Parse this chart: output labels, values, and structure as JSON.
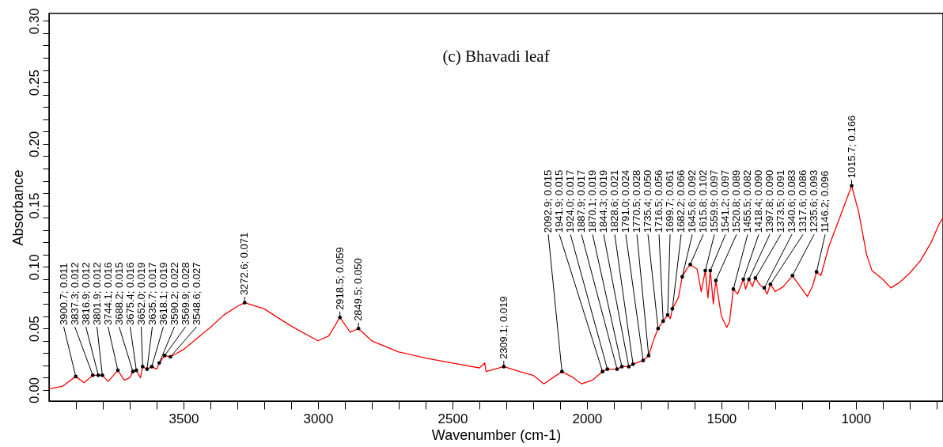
{
  "chart_data": {
    "type": "line",
    "title": "(c) Bhavadi leaf",
    "xlabel": "Wavenumber (cm-1)",
    "ylabel": "Absorbance",
    "xlim": [
      4000,
      676
    ],
    "ylim": [
      -0.009,
      0.306
    ],
    "xticks": [
      {
        "value": 3900,
        "label": null
      },
      {
        "value": 3800,
        "label": null
      },
      {
        "value": 3700,
        "label": null
      },
      {
        "value": 3600,
        "label": null
      },
      3500,
      {
        "value": 3400,
        "label": null
      },
      {
        "value": 3300,
        "label": null
      },
      {
        "value": 3200,
        "label": null
      },
      {
        "value": 3100,
        "label": null
      },
      3000,
      {
        "value": 2900,
        "label": null
      },
      {
        "value": 2800,
        "label": null
      },
      {
        "value": 2700,
        "label": null
      },
      {
        "value": 2600,
        "label": null
      },
      2500,
      {
        "value": 2400,
        "label": null
      },
      {
        "value": 2300,
        "label": null
      },
      {
        "value": 2200,
        "label": null
      },
      {
        "value": 2100,
        "label": null
      },
      2000,
      {
        "value": 1900,
        "label": null
      },
      {
        "value": 1800,
        "label": null
      },
      {
        "value": 1700,
        "label": null
      },
      {
        "value": 1600,
        "label": null
      },
      1500,
      {
        "value": 1400,
        "label": null
      },
      {
        "value": 1300,
        "label": null
      },
      {
        "value": 1200,
        "label": null
      },
      {
        "value": 1100,
        "label": null
      },
      1000,
      {
        "value": 900,
        "label": null
      },
      {
        "value": 800,
        "label": null
      },
      {
        "value": 700,
        "label": null
      }
    ],
    "yticks": [
      {
        "value": 0,
        "label": "0.00"
      },
      {
        "value": 0.01,
        "label": null
      },
      {
        "value": 0.02,
        "label": null
      },
      {
        "value": 0.03,
        "label": null
      },
      {
        "value": 0.04,
        "label": null
      },
      0.05,
      {
        "value": 0.06,
        "label": null
      },
      {
        "value": 0.07,
        "label": null
      },
      {
        "value": 0.08,
        "label": null
      },
      {
        "value": 0.09,
        "label": null
      },
      {
        "value": 0.1,
        "label": "0.10"
      },
      {
        "value": 0.11,
        "label": null
      },
      {
        "value": 0.12,
        "label": null
      },
      {
        "value": 0.13,
        "label": null
      },
      {
        "value": 0.14,
        "label": null
      },
      0.15,
      {
        "value": 0.16,
        "label": null
      },
      {
        "value": 0.17,
        "label": null
      },
      {
        "value": 0.18,
        "label": null
      },
      {
        "value": 0.19,
        "label": null
      },
      {
        "value": 0.2,
        "label": "0.20"
      },
      {
        "value": 0.21,
        "label": null
      },
      {
        "value": 0.22,
        "label": null
      },
      {
        "value": 0.23,
        "label": null
      },
      {
        "value": 0.24,
        "label": null
      },
      0.25,
      {
        "value": 0.26,
        "label": null
      },
      {
        "value": 0.27,
        "label": null
      },
      {
        "value": 0.28,
        "label": null
      },
      {
        "value": 0.29,
        "label": null
      },
      {
        "value": 0.3,
        "label": "0.30"
      }
    ],
    "series": [
      {
        "color": "#ff0000",
        "x": [
          4000,
          3950,
          3900.7,
          3870,
          3837.3,
          3816.9,
          3801.9,
          3780,
          3744.1,
          3720,
          3700,
          3688.2,
          3675.4,
          3660,
          3652.0,
          3635.7,
          3618.1,
          3600,
          3590.2,
          3569.9,
          3548.6,
          3500,
          3450,
          3400,
          3350,
          3300,
          3272.6,
          3200,
          3100,
          3000,
          2960,
          2918.5,
          2880,
          2849.5,
          2800,
          2700,
          2600,
          2500,
          2400,
          2380,
          2375,
          2309.1,
          2250,
          2200,
          2160,
          2120,
          2092.9,
          2050,
          2020,
          1980,
          1941.9,
          1924.0,
          1887.9,
          1870.1,
          1844.3,
          1828.6,
          1791.0,
          1770.5,
          1750,
          1735.4,
          1716.5,
          1699.7,
          1690,
          1682.2,
          1660,
          1645.6,
          1630,
          1615.8,
          1590,
          1575,
          1559.9,
          1550,
          1541.2,
          1530,
          1520.8,
          1500,
          1480,
          1470,
          1455.5,
          1440,
          1418.4,
          1410,
          1397.8,
          1385,
          1373.5,
          1355,
          1340.6,
          1330,
          1317.6,
          1300,
          1270,
          1235.6,
          1210,
          1180,
          1160,
          1146.2,
          1130,
          1100,
          1060,
          1015.7,
          990,
          960,
          940,
          900,
          870,
          840,
          800,
          760,
          720,
          690,
          676
        ],
        "values": [
          0.001,
          0.003,
          0.011,
          0.006,
          0.012,
          0.012,
          0.012,
          0.007,
          0.016,
          0.008,
          0.01,
          0.015,
          0.016,
          0.01,
          0.019,
          0.017,
          0.019,
          0.017,
          0.022,
          0.028,
          0.027,
          0.033,
          0.042,
          0.051,
          0.061,
          0.068,
          0.071,
          0.066,
          0.052,
          0.04,
          0.044,
          0.059,
          0.047,
          0.05,
          0.04,
          0.031,
          0.026,
          0.022,
          0.018,
          0.022,
          0.015,
          0.019,
          0.015,
          0.012,
          0.005,
          0.011,
          0.015,
          0.01,
          0.005,
          0.008,
          0.015,
          0.017,
          0.017,
          0.019,
          0.019,
          0.021,
          0.024,
          0.028,
          0.042,
          0.05,
          0.056,
          0.061,
          0.058,
          0.066,
          0.075,
          0.092,
          0.098,
          0.102,
          0.098,
          0.08,
          0.097,
          0.075,
          0.097,
          0.07,
          0.089,
          0.06,
          0.051,
          0.055,
          0.082,
          0.078,
          0.09,
          0.082,
          0.09,
          0.084,
          0.091,
          0.085,
          0.083,
          0.078,
          0.086,
          0.08,
          0.084,
          0.093,
          0.085,
          0.076,
          0.085,
          0.096,
          0.093,
          0.117,
          0.14,
          0.166,
          0.145,
          0.11,
          0.097,
          0.09,
          0.083,
          0.087,
          0.095,
          0.105,
          0.12,
          0.135,
          0.14
        ]
      }
    ],
    "annotations": [
      {
        "text": "3900.7; 0.011",
        "x": 3900.7,
        "y": 0.011
      },
      {
        "text": "3837.3; 0.012",
        "x": 3837.3,
        "y": 0.012
      },
      {
        "text": "3816.9; 0.012",
        "x": 3816.9,
        "y": 0.012
      },
      {
        "text": "3801.9; 0.012",
        "x": 3801.9,
        "y": 0.012
      },
      {
        "text": "3744.1; 0.016",
        "x": 3744.1,
        "y": 0.016
      },
      {
        "text": "3688.2; 0.015",
        "x": 3688.2,
        "y": 0.015
      },
      {
        "text": "3675.4; 0.016",
        "x": 3675.4,
        "y": 0.016
      },
      {
        "text": "3652.0; 0.019",
        "x": 3652.0,
        "y": 0.019
      },
      {
        "text": "3635.7; 0.017",
        "x": 3635.7,
        "y": 0.017
      },
      {
        "text": "3618.1; 0.019",
        "x": 3618.1,
        "y": 0.019
      },
      {
        "text": "3590.2; 0.022",
        "x": 3590.2,
        "y": 0.022
      },
      {
        "text": "3569.9; 0.028",
        "x": 3569.9,
        "y": 0.028
      },
      {
        "text": "3548.6; 0.027",
        "x": 3548.6,
        "y": 0.027
      },
      {
        "text": "3272.6; 0.071",
        "x": 3272.6,
        "y": 0.071
      },
      {
        "text": "2918.5; 0.059",
        "x": 2918.5,
        "y": 0.059
      },
      {
        "text": "2849.5; 0.050",
        "x": 2849.5,
        "y": 0.05
      },
      {
        "text": "2309.1; 0.019",
        "x": 2309.1,
        "y": 0.019
      },
      {
        "text": "2092.9; 0.015",
        "x": 2092.9,
        "y": 0.015
      },
      {
        "text": "1941.9; 0.015",
        "x": 1941.9,
        "y": 0.015
      },
      {
        "text": "1924.0; 0.017",
        "x": 1924.0,
        "y": 0.017
      },
      {
        "text": "1887.9; 0.017",
        "x": 1887.9,
        "y": 0.017
      },
      {
        "text": "1870.1; 0.019",
        "x": 1870.1,
        "y": 0.019
      },
      {
        "text": "1844.3; 0.019",
        "x": 1844.3,
        "y": 0.019
      },
      {
        "text": "1828.6; 0.021",
        "x": 1828.6,
        "y": 0.021
      },
      {
        "text": "1791.0; 0.024",
        "x": 1791.0,
        "y": 0.024
      },
      {
        "text": "1770.5; 0.028",
        "x": 1770.5,
        "y": 0.028
      },
      {
        "text": "1735.4; 0.050",
        "x": 1735.4,
        "y": 0.05
      },
      {
        "text": "1716.5; 0.056",
        "x": 1716.5,
        "y": 0.056
      },
      {
        "text": "1699.7; 0.061",
        "x": 1699.7,
        "y": 0.061
      },
      {
        "text": "1682.2; 0.066",
        "x": 1682.2,
        "y": 0.066
      },
      {
        "text": "1645.6; 0.092",
        "x": 1645.6,
        "y": 0.092
      },
      {
        "text": "1615.8; 0.102",
        "x": 1615.8,
        "y": 0.102
      },
      {
        "text": "1559.9; 0.097",
        "x": 1559.9,
        "y": 0.097
      },
      {
        "text": "1541.2; 0.097",
        "x": 1541.2,
        "y": 0.097
      },
      {
        "text": "1520.8; 0.089",
        "x": 1520.8,
        "y": 0.089
      },
      {
        "text": "1455.5; 0.082",
        "x": 1455.5,
        "y": 0.082
      },
      {
        "text": "1418.4; 0.090",
        "x": 1418.4,
        "y": 0.09
      },
      {
        "text": "1397.8; 0.090",
        "x": 1397.8,
        "y": 0.09
      },
      {
        "text": "1373.5; 0.091",
        "x": 1373.5,
        "y": 0.091
      },
      {
        "text": "1340.6; 0.083",
        "x": 1340.6,
        "y": 0.083
      },
      {
        "text": "1317.6; 0.086",
        "x": 1317.6,
        "y": 0.086
      },
      {
        "text": "1235.6; 0.093",
        "x": 1235.6,
        "y": 0.093
      },
      {
        "text": "1146.2; 0.096",
        "x": 1146.2,
        "y": 0.096
      },
      {
        "text": "1015.7; 0.166",
        "x": 1015.7,
        "y": 0.166
      }
    ]
  }
}
